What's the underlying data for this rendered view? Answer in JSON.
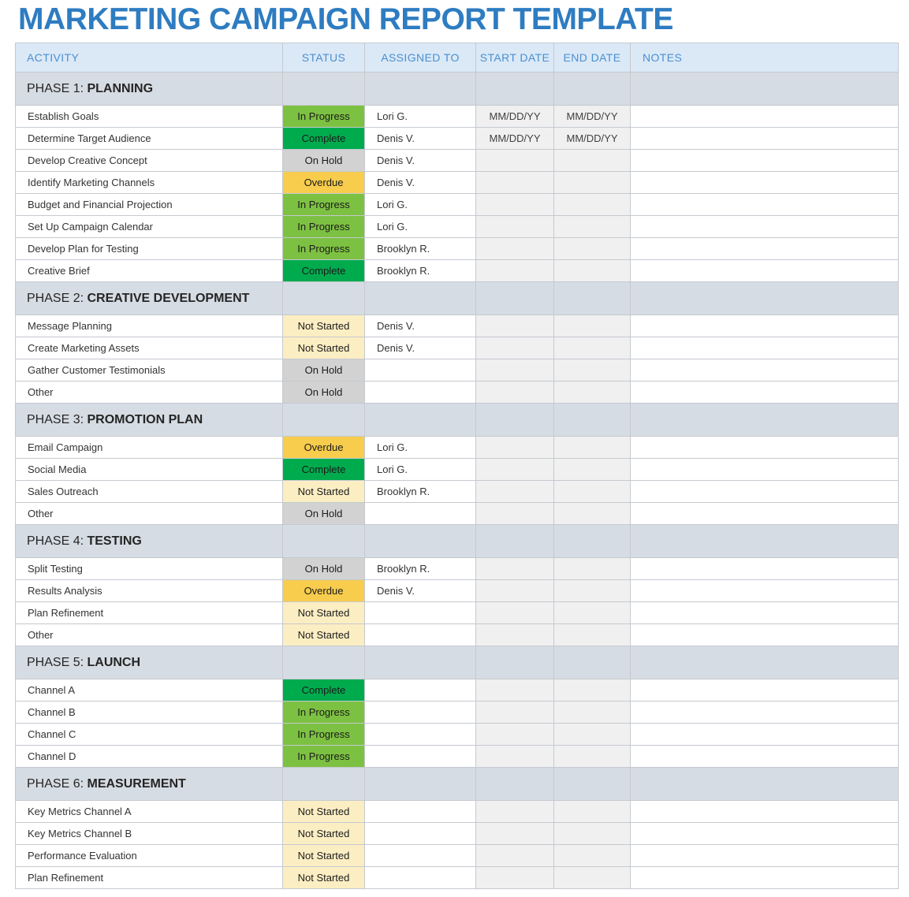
{
  "title": "MARKETING CAMPAIGN REPORT TEMPLATE",
  "colors": {
    "title_blue": "#2e7cc1",
    "header_bg": "#dbe9f7",
    "header_text": "#4a8fd1",
    "phase_band_bg": "#d6dce3",
    "date_cell_bg": "#f0f0f0",
    "status": {
      "Complete": "#00ab4e",
      "In Progress": "#7dc142",
      "On Hold": "#d2d2d2",
      "Overdue": "#f8cc4c",
      "Not Started": "#fceec3"
    }
  },
  "columns": [
    "ACTIVITY",
    "STATUS",
    "ASSIGNED TO",
    "START DATE",
    "END DATE",
    "NOTES"
  ],
  "phases": [
    {
      "label": "PHASE 1:",
      "name": "PLANNING",
      "rows": [
        {
          "activity": "Establish Goals",
          "status": "In Progress",
          "assigned": "Lori G.",
          "start": "MM/DD/YY",
          "end": "MM/DD/YY",
          "notes": ""
        },
        {
          "activity": "Determine Target Audience",
          "status": "Complete",
          "assigned": "Denis V.",
          "start": "MM/DD/YY",
          "end": "MM/DD/YY",
          "notes": ""
        },
        {
          "activity": "Develop Creative Concept",
          "status": "On Hold",
          "assigned": "Denis V.",
          "start": "",
          "end": "",
          "notes": ""
        },
        {
          "activity": "Identify Marketing Channels",
          "status": "Overdue",
          "assigned": "Denis V.",
          "start": "",
          "end": "",
          "notes": ""
        },
        {
          "activity": "Budget and Financial Projection",
          "status": "In Progress",
          "assigned": "Lori G.",
          "start": "",
          "end": "",
          "notes": ""
        },
        {
          "activity": "Set Up Campaign Calendar",
          "status": "In Progress",
          "assigned": "Lori G.",
          "start": "",
          "end": "",
          "notes": ""
        },
        {
          "activity": "Develop Plan for Testing",
          "status": "In Progress",
          "assigned": "Brooklyn R.",
          "start": "",
          "end": "",
          "notes": ""
        },
        {
          "activity": "Creative Brief",
          "status": "Complete",
          "assigned": "Brooklyn R.",
          "start": "",
          "end": "",
          "notes": ""
        }
      ]
    },
    {
      "label": "PHASE 2:",
      "name": "CREATIVE DEVELOPMENT",
      "rows": [
        {
          "activity": "Message Planning",
          "status": "Not Started",
          "assigned": "Denis V.",
          "start": "",
          "end": "",
          "notes": ""
        },
        {
          "activity": "Create Marketing Assets",
          "status": "Not Started",
          "assigned": "Denis V.",
          "start": "",
          "end": "",
          "notes": ""
        },
        {
          "activity": "Gather Customer Testimonials",
          "status": "On Hold",
          "assigned": "",
          "start": "",
          "end": "",
          "notes": ""
        },
        {
          "activity": "Other",
          "status": "On Hold",
          "assigned": "",
          "start": "",
          "end": "",
          "notes": ""
        }
      ]
    },
    {
      "label": "PHASE 3:",
      "name": "PROMOTION PLAN",
      "rows": [
        {
          "activity": "Email Campaign",
          "status": "Overdue",
          "assigned": "Lori G.",
          "start": "",
          "end": "",
          "notes": ""
        },
        {
          "activity": "Social Media",
          "status": "Complete",
          "assigned": "Lori G.",
          "start": "",
          "end": "",
          "notes": ""
        },
        {
          "activity": "Sales Outreach",
          "status": "Not Started",
          "assigned": "Brooklyn R.",
          "start": "",
          "end": "",
          "notes": ""
        },
        {
          "activity": "Other",
          "status": "On Hold",
          "assigned": "",
          "start": "",
          "end": "",
          "notes": ""
        }
      ]
    },
    {
      "label": "PHASE 4:",
      "name": "TESTING",
      "rows": [
        {
          "activity": "Split Testing",
          "status": "On Hold",
          "assigned": "Brooklyn R.",
          "start": "",
          "end": "",
          "notes": ""
        },
        {
          "activity": "Results Analysis",
          "status": "Overdue",
          "assigned": "Denis V.",
          "start": "",
          "end": "",
          "notes": ""
        },
        {
          "activity": "Plan Refinement",
          "status": "Not Started",
          "assigned": "",
          "start": "",
          "end": "",
          "notes": ""
        },
        {
          "activity": "Other",
          "status": "Not Started",
          "assigned": "",
          "start": "",
          "end": "",
          "notes": ""
        }
      ]
    },
    {
      "label": "PHASE 5:",
      "name": "LAUNCH",
      "rows": [
        {
          "activity": "Channel A",
          "status": "Complete",
          "assigned": "",
          "start": "",
          "end": "",
          "notes": ""
        },
        {
          "activity": "Channel B",
          "status": "In Progress",
          "assigned": "",
          "start": "",
          "end": "",
          "notes": ""
        },
        {
          "activity": "Channel C",
          "status": "In Progress",
          "assigned": "",
          "start": "",
          "end": "",
          "notes": ""
        },
        {
          "activity": "Channel D",
          "status": "In Progress",
          "assigned": "",
          "start": "",
          "end": "",
          "notes": ""
        }
      ]
    },
    {
      "label": "PHASE 6:",
      "name": "MEASUREMENT",
      "rows": [
        {
          "activity": "Key Metrics Channel A",
          "status": "Not Started",
          "assigned": "",
          "start": "",
          "end": "",
          "notes": ""
        },
        {
          "activity": "Key Metrics Channel B",
          "status": "Not Started",
          "assigned": "",
          "start": "",
          "end": "",
          "notes": ""
        },
        {
          "activity": "Performance Evaluation",
          "status": "Not Started",
          "assigned": "",
          "start": "",
          "end": "",
          "notes": ""
        },
        {
          "activity": "Plan Refinement",
          "status": "Not Started",
          "assigned": "",
          "start": "",
          "end": "",
          "notes": ""
        }
      ]
    }
  ]
}
